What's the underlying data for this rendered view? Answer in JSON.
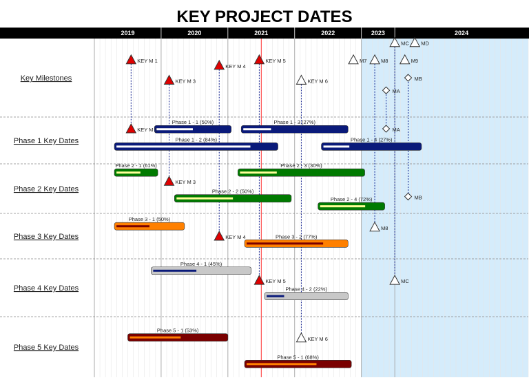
{
  "chart_data": {
    "type": "gantt",
    "title": "KEY PROJECT DATES",
    "x_unit": "year",
    "xlim": [
      2018.5,
      2025
    ],
    "years": [
      {
        "label": "2019",
        "start": 2018.5,
        "end": 2019.5
      },
      {
        "label": "2020",
        "start": 2019.5,
        "end": 2020.5
      },
      {
        "label": "2021",
        "start": 2020.5,
        "end": 2021.5
      },
      {
        "label": "2022",
        "start": 2021.5,
        "end": 2022.5
      },
      {
        "label": "2023",
        "start": 2022.5,
        "end": 2023.0
      },
      {
        "label": "2024",
        "start": 2023.0,
        "end": 2025.0
      }
    ],
    "today": 2021.0,
    "highlight_range": [
      2022.5,
      2025.0
    ],
    "rows": [
      {
        "label": "Key Milestones"
      },
      {
        "label": "Phase 1 Key Dates"
      },
      {
        "label": "Phase 2 Key Dates"
      },
      {
        "label": "Phase 3 Key Dates"
      },
      {
        "label": "Phase 4 Key Dates"
      },
      {
        "label": "Phase 5 Key Dates"
      }
    ],
    "bars": [
      {
        "label": "Phase 1 - 1 (50%)",
        "row": 1,
        "lane": 0,
        "start": 2019.4,
        "end": 2020.55,
        "progress": 0.5,
        "color": "#0a1a7a",
        "progress_color": "#ffffff"
      },
      {
        "label": "Phase 1 - 3 (27%)",
        "row": 1,
        "lane": 0,
        "start": 2020.7,
        "end": 2022.3,
        "progress": 0.27,
        "color": "#0a1a7a",
        "progress_color": "#ffffff"
      },
      {
        "label": "Phase 1 - 2 (84%)",
        "row": 1,
        "lane": 1,
        "start": 2018.8,
        "end": 2021.25,
        "progress": 0.84,
        "color": "#0a1a7a",
        "progress_color": "#ffffff"
      },
      {
        "label": "Phase 1 - 4 (27%)",
        "row": 1,
        "lane": 1,
        "start": 2021.9,
        "end": 2023.4,
        "progress": 0.27,
        "color": "#0a1a7a",
        "progress_color": "#ffffff"
      },
      {
        "label": "Phase 2 - 1 (61%)",
        "row": 2,
        "lane": 0,
        "start": 2018.8,
        "end": 2019.45,
        "progress": 0.61,
        "color": "#007a00",
        "progress_color": "#ffff99"
      },
      {
        "label": "Phase 2 - 3 (30%)",
        "row": 2,
        "lane": 0,
        "start": 2020.65,
        "end": 2022.55,
        "progress": 0.3,
        "color": "#007a00",
        "progress_color": "#ffff99"
      },
      {
        "label": "Phase 2 - 2 (50%)",
        "row": 2,
        "lane": 1,
        "start": 2019.7,
        "end": 2021.45,
        "progress": 0.5,
        "color": "#007a00",
        "progress_color": "#ffff99"
      },
      {
        "label": "Phase 2 - 4 (72%)",
        "row": 2,
        "lane": 2,
        "start": 2021.85,
        "end": 2022.85,
        "progress": 0.72,
        "color": "#007a00",
        "progress_color": "#ffff99"
      },
      {
        "label": "Phase 3 - 1 (50%)",
        "row": 3,
        "lane": 0,
        "start": 2018.8,
        "end": 2019.85,
        "progress": 0.5,
        "color": "#ff8000",
        "progress_color": "#7a0000"
      },
      {
        "label": "Phase 3 - 2 (77%)",
        "row": 3,
        "lane": 1,
        "start": 2020.75,
        "end": 2022.3,
        "progress": 0.77,
        "color": "#ff8000",
        "progress_color": "#7a0000"
      },
      {
        "label": "Phase 4 - 1 (45%)",
        "row": 4,
        "lane": 0,
        "start": 2019.35,
        "end": 2020.85,
        "progress": 0.45,
        "color": "#c8c8c8",
        "progress_color": "#0a1a7a"
      },
      {
        "label": "Phase 4 - 2 (22%)",
        "row": 4,
        "lane": 1,
        "start": 2021.05,
        "end": 2022.3,
        "progress": 0.22,
        "color": "#c8c8c8",
        "progress_color": "#0a1a7a"
      },
      {
        "label": "Phase 5 - 1 (53%)",
        "row": 5,
        "lane": 0,
        "start": 2019.0,
        "end": 2020.5,
        "progress": 0.53,
        "color": "#7a0000",
        "progress_color": "#ff8000"
      },
      {
        "label": "Phase 5 - 1 (68%)",
        "row": 5,
        "lane": 1,
        "start": 2020.75,
        "end": 2022.35,
        "progress": 0.68,
        "color": "#7a0000",
        "progress_color": "#ff8000"
      }
    ],
    "milestones": [
      {
        "label": "KEY M 1",
        "shape": "triangle",
        "color": "#e00000",
        "x": 2019.05,
        "row": 0,
        "level": 0.27
      },
      {
        "label": "KEY M 3",
        "shape": "triangle",
        "color": "#e00000",
        "x": 2019.62,
        "row": 0,
        "level": 0.53
      },
      {
        "label": "KEY M 4",
        "shape": "triangle",
        "color": "#e00000",
        "x": 2020.37,
        "row": 0,
        "level": 0.34
      },
      {
        "label": "KEY M 5",
        "shape": "triangle",
        "color": "#e00000",
        "x": 2020.97,
        "row": 0,
        "level": 0.27
      },
      {
        "label": "KEY M 6",
        "shape": "triangle",
        "color": "#ffffff",
        "x": 2021.6,
        "row": 0,
        "level": 0.53
      },
      {
        "label": "M7",
        "shape": "triangle",
        "color": "#ffffff",
        "x": 2022.38,
        "row": 0,
        "level": 0.27
      },
      {
        "label": "M8",
        "shape": "triangle",
        "color": "#ffffff",
        "x": 2022.7,
        "row": 0,
        "level": 0.27
      },
      {
        "label": "MC",
        "shape": "triangle",
        "color": "#ffffff",
        "x": 2023.0,
        "row": 0,
        "level": 0.05
      },
      {
        "label": "MD",
        "shape": "triangle",
        "color": "#ffffff",
        "x": 2023.3,
        "row": 0,
        "level": 0.05
      },
      {
        "label": "M9",
        "shape": "triangle",
        "color": "#ffffff",
        "x": 2023.15,
        "row": 0,
        "level": 0.27
      },
      {
        "label": "MA",
        "shape": "diamond",
        "color": "#ffffff",
        "x": 2022.87,
        "row": 0,
        "level": 0.66
      },
      {
        "label": "MB",
        "shape": "diamond",
        "color": "#ffffff",
        "x": 2023.2,
        "row": 0,
        "level": 0.5
      },
      {
        "label": "KEY M 1",
        "shape": "triangle",
        "color": "#e00000",
        "x": 2019.05,
        "row": 1,
        "level": 0.25
      },
      {
        "label": "MA",
        "shape": "diamond",
        "color": "#ffffff",
        "x": 2022.87,
        "row": 1,
        "level": 0.25
      },
      {
        "label": "KEY M 3",
        "shape": "triangle",
        "color": "#e00000",
        "x": 2019.62,
        "row": 2,
        "level": 0.35
      },
      {
        "label": "MB",
        "shape": "diamond",
        "color": "#ffffff",
        "x": 2023.2,
        "row": 2,
        "level": 0.66
      },
      {
        "label": "M8",
        "shape": "triangle",
        "color": "#ffffff",
        "x": 2022.7,
        "row": 3,
        "level": 0.3
      },
      {
        "label": "KEY M 4",
        "shape": "triangle",
        "color": "#e00000",
        "x": 2020.37,
        "row": 3,
        "level": 0.5
      },
      {
        "label": "KEY M 5",
        "shape": "triangle",
        "color": "#e00000",
        "x": 2020.97,
        "row": 4,
        "level": 0.37
      },
      {
        "label": "MC",
        "shape": "triangle",
        "color": "#ffffff",
        "x": 2023.0,
        "row": 4,
        "level": 0.37
      },
      {
        "label": "KEY M 6",
        "shape": "triangle",
        "color": "#ffffff",
        "x": 2021.6,
        "row": 5,
        "level": 0.35
      }
    ]
  }
}
